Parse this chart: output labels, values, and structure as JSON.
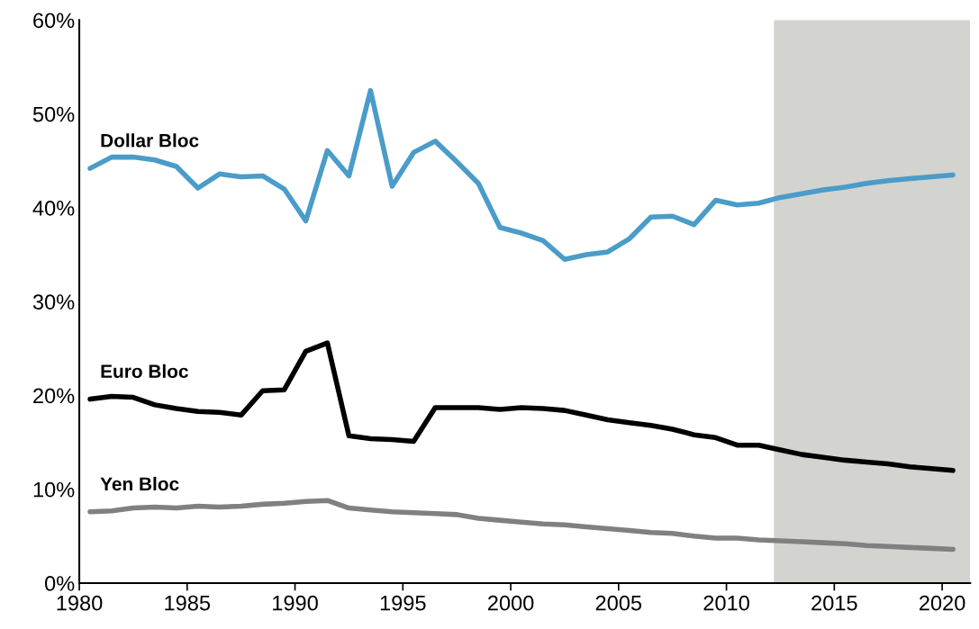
{
  "chart_data": {
    "type": "line",
    "x": [
      1980.5,
      1981.5,
      1982.5,
      1983.5,
      1984.5,
      1985.5,
      1986.5,
      1987.5,
      1988.5,
      1989.5,
      1990.5,
      1991.5,
      1992.5,
      1993.5,
      1994.5,
      1995.5,
      1996.5,
      1997.5,
      1998.5,
      1999.5,
      2000.5,
      2001.5,
      2002.5,
      2003.5,
      2004.5,
      2005.5,
      2006.5,
      2007.5,
      2008.5,
      2009.5,
      2010.5,
      2011.5,
      2012.5,
      2013.5,
      2014.5,
      2015.5,
      2016.5,
      2017.5,
      2018.5,
      2019.5,
      2020.5
    ],
    "series": [
      {
        "name": "Dollar Bloc",
        "color": "#4a9cc9",
        "values": [
          44.2,
          45.4,
          45.4,
          45.1,
          44.4,
          42.1,
          43.6,
          43.3,
          43.4,
          42.0,
          38.6,
          46.1,
          43.4,
          52.5,
          42.3,
          45.9,
          47.1,
          44.9,
          42.6,
          37.9,
          37.3,
          36.5,
          34.5,
          35.0,
          35.3,
          36.7,
          39.0,
          39.1,
          38.2,
          40.8,
          40.3,
          40.5,
          41.1,
          41.5,
          41.9,
          42.2,
          42.6,
          42.9,
          43.1,
          43.3,
          43.5
        ]
      },
      {
        "name": "Euro Bloc",
        "color": "#000000",
        "values": [
          19.6,
          19.9,
          19.8,
          19.0,
          18.6,
          18.3,
          18.2,
          17.9,
          20.5,
          20.6,
          24.7,
          25.6,
          15.7,
          15.4,
          15.3,
          15.1,
          18.7,
          18.7,
          18.7,
          18.5,
          18.7,
          18.6,
          18.4,
          17.9,
          17.4,
          17.1,
          16.8,
          16.4,
          15.8,
          15.5,
          14.7,
          14.7,
          14.2,
          13.7,
          13.4,
          13.1,
          12.9,
          12.7,
          12.4,
          12.2,
          12.0
        ]
      },
      {
        "name": "Yen Bloc",
        "color": "#808080",
        "values": [
          7.6,
          7.7,
          8.0,
          8.1,
          8.0,
          8.2,
          8.1,
          8.2,
          8.4,
          8.5,
          8.7,
          8.8,
          8.0,
          7.8,
          7.6,
          7.5,
          7.4,
          7.3,
          6.9,
          6.7,
          6.5,
          6.3,
          6.2,
          6.0,
          5.8,
          5.6,
          5.4,
          5.3,
          5.0,
          4.8,
          4.8,
          4.6,
          4.5,
          4.4,
          4.3,
          4.2,
          4.0,
          3.9,
          3.8,
          3.7,
          3.6
        ]
      }
    ],
    "xlim": [
      1980,
      2021.3
    ],
    "xticks": [
      1980,
      1985,
      1990,
      1995,
      2000,
      2005,
      2010,
      2015,
      2020
    ],
    "ylim": [
      0,
      60
    ],
    "yticks": [
      {
        "value": 0,
        "label": "0%"
      },
      {
        "value": 10,
        "label": "10%"
      },
      {
        "value": 20,
        "label": "20%"
      },
      {
        "value": 30,
        "label": "30%"
      },
      {
        "value": 40,
        "label": "40%"
      },
      {
        "value": 50,
        "label": "50%"
      },
      {
        "value": 60,
        "label": "60%"
      }
    ],
    "bands": [
      {
        "axis": "x",
        "from": 2012.2,
        "to": 2021.3,
        "color": "#d3d3cf"
      }
    ],
    "grid": false,
    "legend": false,
    "marker": "none",
    "line_style": "solid"
  }
}
